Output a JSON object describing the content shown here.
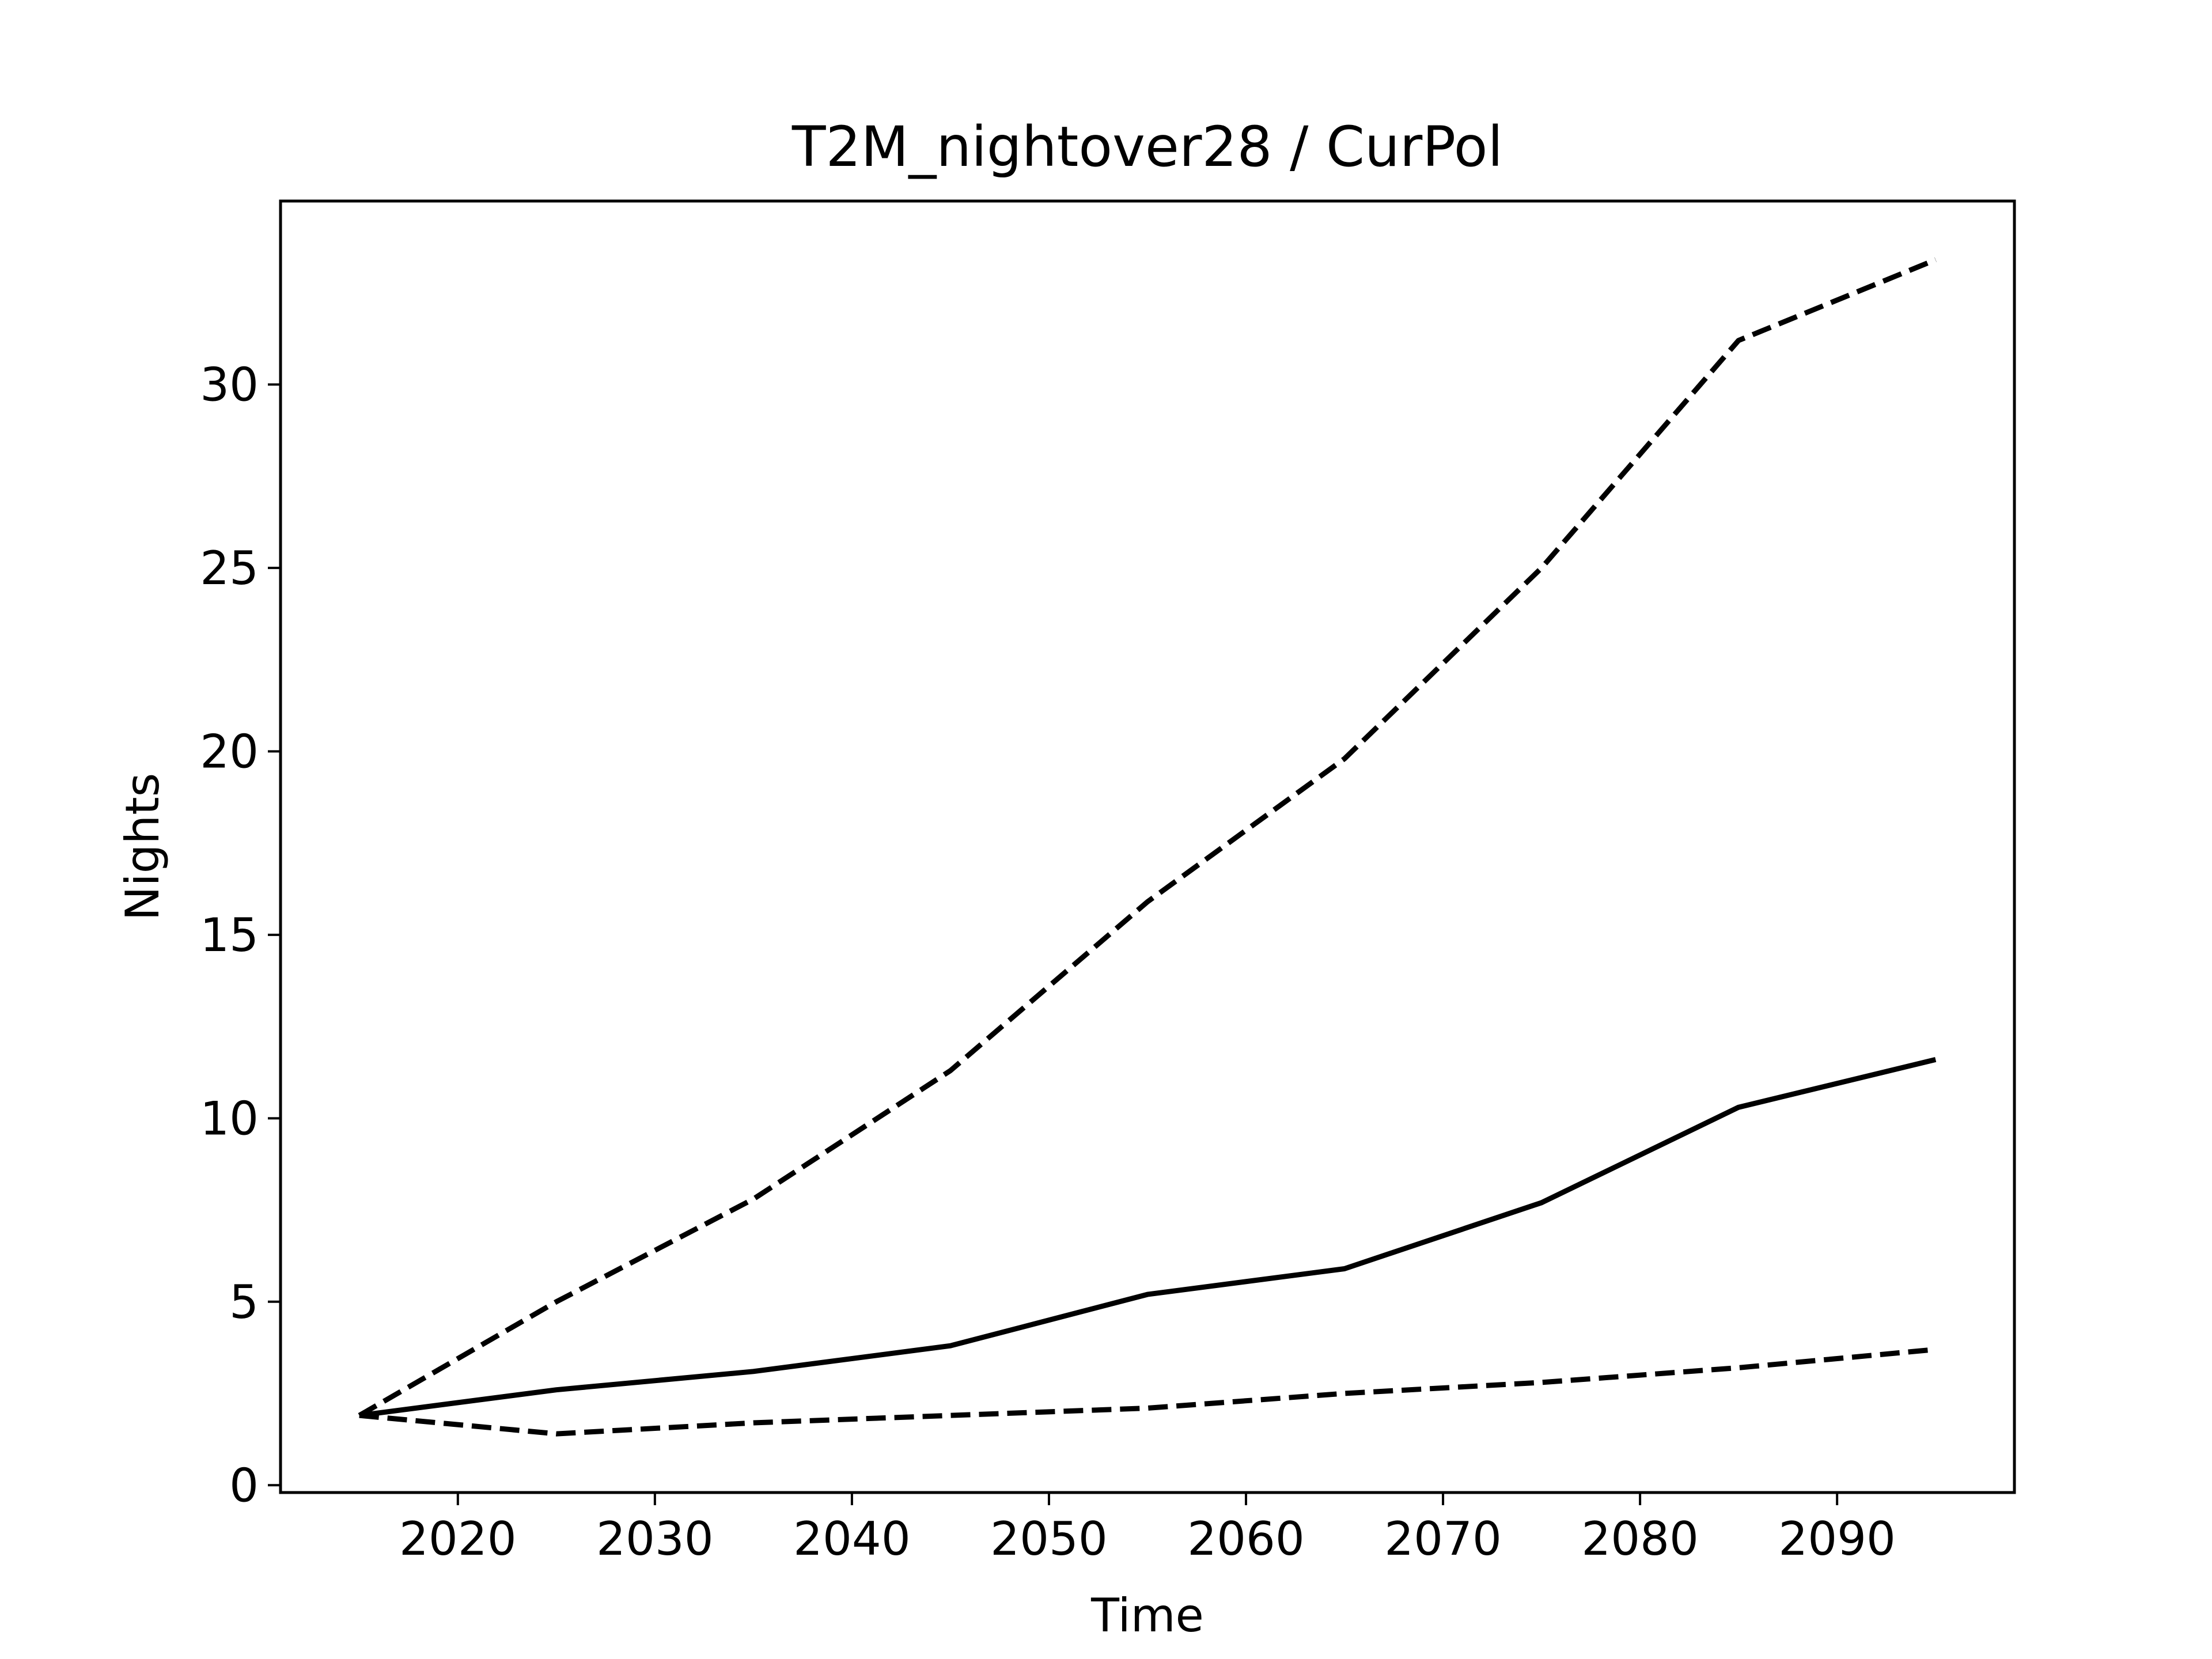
{
  "chart_data": {
    "type": "line",
    "title": "T2M_nightover28 / CurPol",
    "xlabel": "Time",
    "ylabel": "Nights",
    "xlim": [
      2011,
      2099
    ],
    "ylim": [
      -0.2,
      35.0
    ],
    "xticks": [
      2020,
      2030,
      2040,
      2050,
      2060,
      2070,
      2080,
      2090
    ],
    "yticks": [
      0,
      5,
      10,
      15,
      20,
      25,
      30
    ],
    "x": [
      2015,
      2025,
      2035,
      2045,
      2055,
      2065,
      2075,
      2085,
      2095
    ],
    "series": [
      {
        "values": [
          1.9,
          5.0,
          7.8,
          11.3,
          15.9,
          19.8,
          25.0,
          31.2,
          33.4
        ],
        "style": "dashed"
      },
      {
        "values": [
          1.9,
          2.6,
          3.1,
          3.8,
          5.2,
          5.9,
          7.7,
          10.3,
          11.6
        ],
        "style": "solid"
      },
      {
        "values": [
          1.9,
          1.4,
          1.7,
          1.9,
          2.1,
          2.5,
          2.8,
          3.2,
          3.7
        ],
        "style": "dashed"
      }
    ],
    "grid": false,
    "legend": false,
    "line_color": "#000000"
  }
}
